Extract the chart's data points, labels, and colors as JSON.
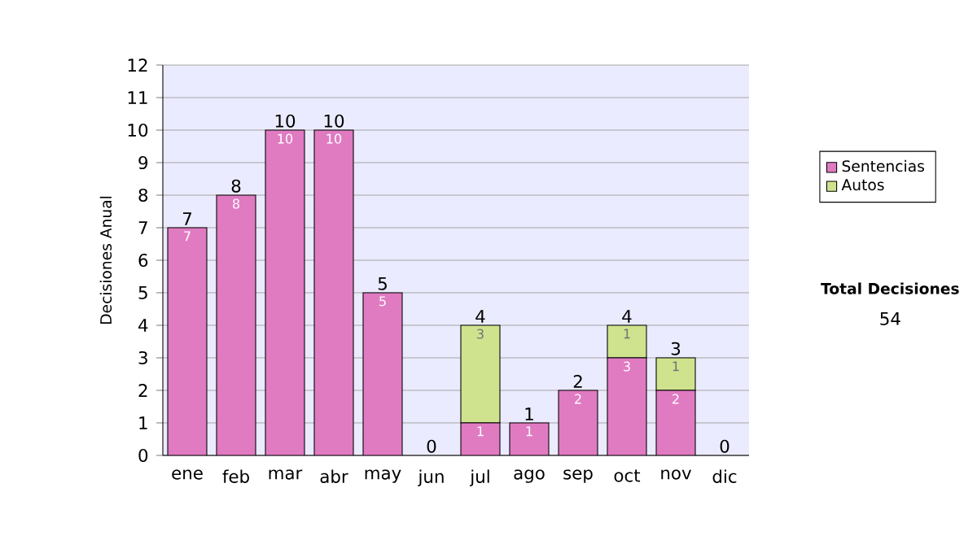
{
  "chart_data": {
    "type": "bar",
    "stacked": true,
    "ylabel": "Decisiones Anual",
    "categories": [
      "ene",
      "feb",
      "mar",
      "abr",
      "may",
      "jun",
      "jul",
      "ago",
      "sep",
      "oct",
      "nov",
      "dic"
    ],
    "series": [
      {
        "name": "Sentencias",
        "color": "#e07bc2",
        "values": [
          7,
          8,
          10,
          10,
          5,
          0,
          1,
          1,
          2,
          3,
          2,
          0
        ],
        "value_labels": [
          "7",
          "8",
          "10",
          "10",
          "5",
          null,
          "1",
          "1",
          "2",
          "3",
          "2",
          null
        ]
      },
      {
        "name": "Autos",
        "color": "#cfe38e",
        "values": [
          0,
          0,
          0,
          0,
          0,
          0,
          3,
          0,
          0,
          1,
          1,
          0
        ],
        "value_labels": [
          null,
          null,
          null,
          null,
          null,
          null,
          "3",
          null,
          null,
          "1",
          "1",
          null
        ]
      }
    ],
    "totals": [
      "7",
      "8",
      "10",
      "10",
      "5",
      "0",
      "4",
      "1",
      "2",
      "4",
      "3",
      "0"
    ],
    "ylim": [
      0,
      12
    ],
    "yticks": [
      0,
      1,
      2,
      3,
      4,
      5,
      6,
      7,
      8,
      9,
      10,
      11,
      12
    ],
    "grid": "y",
    "legend": "right",
    "annotations": [
      "Total Decisiones",
      "54"
    ]
  }
}
